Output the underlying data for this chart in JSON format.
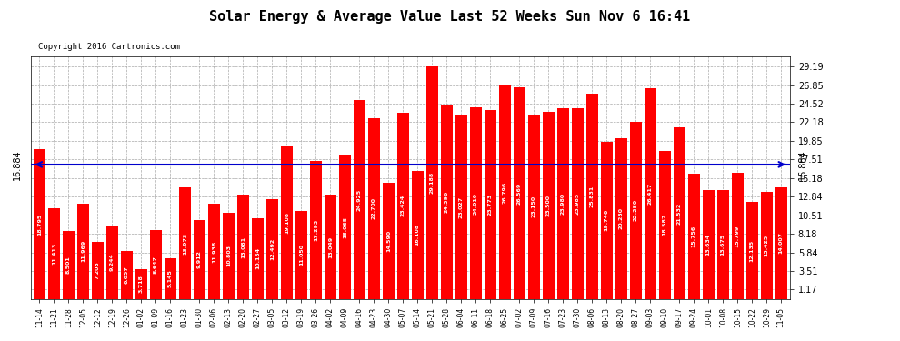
{
  "title": "Solar Energy & Average Value Last 52 Weeks Sun Nov 6 16:41",
  "copyright": "Copyright 2016 Cartronics.com",
  "average_value": 16.884,
  "bar_color": "#ff0000",
  "average_line_color": "#0000cc",
  "background_color": "#ffffff",
  "grid_color": "#aaaaaa",
  "yticks": [
    1.17,
    3.51,
    5.84,
    8.18,
    10.51,
    12.84,
    15.18,
    17.51,
    19.85,
    22.18,
    24.52,
    26.85,
    29.19
  ],
  "legend_avg_color": "#0000bb",
  "legend_daily_color": "#cc0000",
  "categories": [
    "11-14",
    "11-21",
    "11-28",
    "12-05",
    "12-12",
    "12-19",
    "12-26",
    "01-02",
    "01-09",
    "01-16",
    "01-23",
    "01-30",
    "02-06",
    "02-13",
    "02-20",
    "02-27",
    "03-05",
    "03-12",
    "03-19",
    "03-26",
    "04-02",
    "04-09",
    "04-16",
    "04-23",
    "04-30",
    "05-07",
    "05-14",
    "05-21",
    "05-28",
    "06-04",
    "06-11",
    "06-18",
    "06-25",
    "07-02",
    "07-09",
    "07-16",
    "07-23",
    "07-30",
    "08-06",
    "08-13",
    "08-20",
    "08-27",
    "09-03",
    "09-10",
    "09-17",
    "09-24",
    "10-01",
    "10-08",
    "10-15",
    "10-22",
    "10-29",
    "11-05"
  ],
  "values": [
    18.795,
    11.413,
    8.501,
    11.969,
    7.208,
    9.244,
    6.057,
    3.718,
    8.647,
    5.145,
    13.973,
    9.912,
    11.938,
    10.803,
    13.081,
    10.154,
    12.492,
    19.108,
    11.05,
    17.293,
    13.049,
    18.065,
    24.925,
    22.7,
    14.59,
    23.424,
    16.108,
    29.188,
    24.396,
    23.027,
    24.019,
    23.773,
    26.796,
    26.569,
    23.15,
    23.5,
    23.98,
    23.985,
    25.831,
    19.746,
    20.23,
    22.28,
    26.417,
    18.582,
    21.532,
    15.756,
    13.634,
    13.675,
    15.799,
    12.135,
    13.425,
    14.007
  ]
}
